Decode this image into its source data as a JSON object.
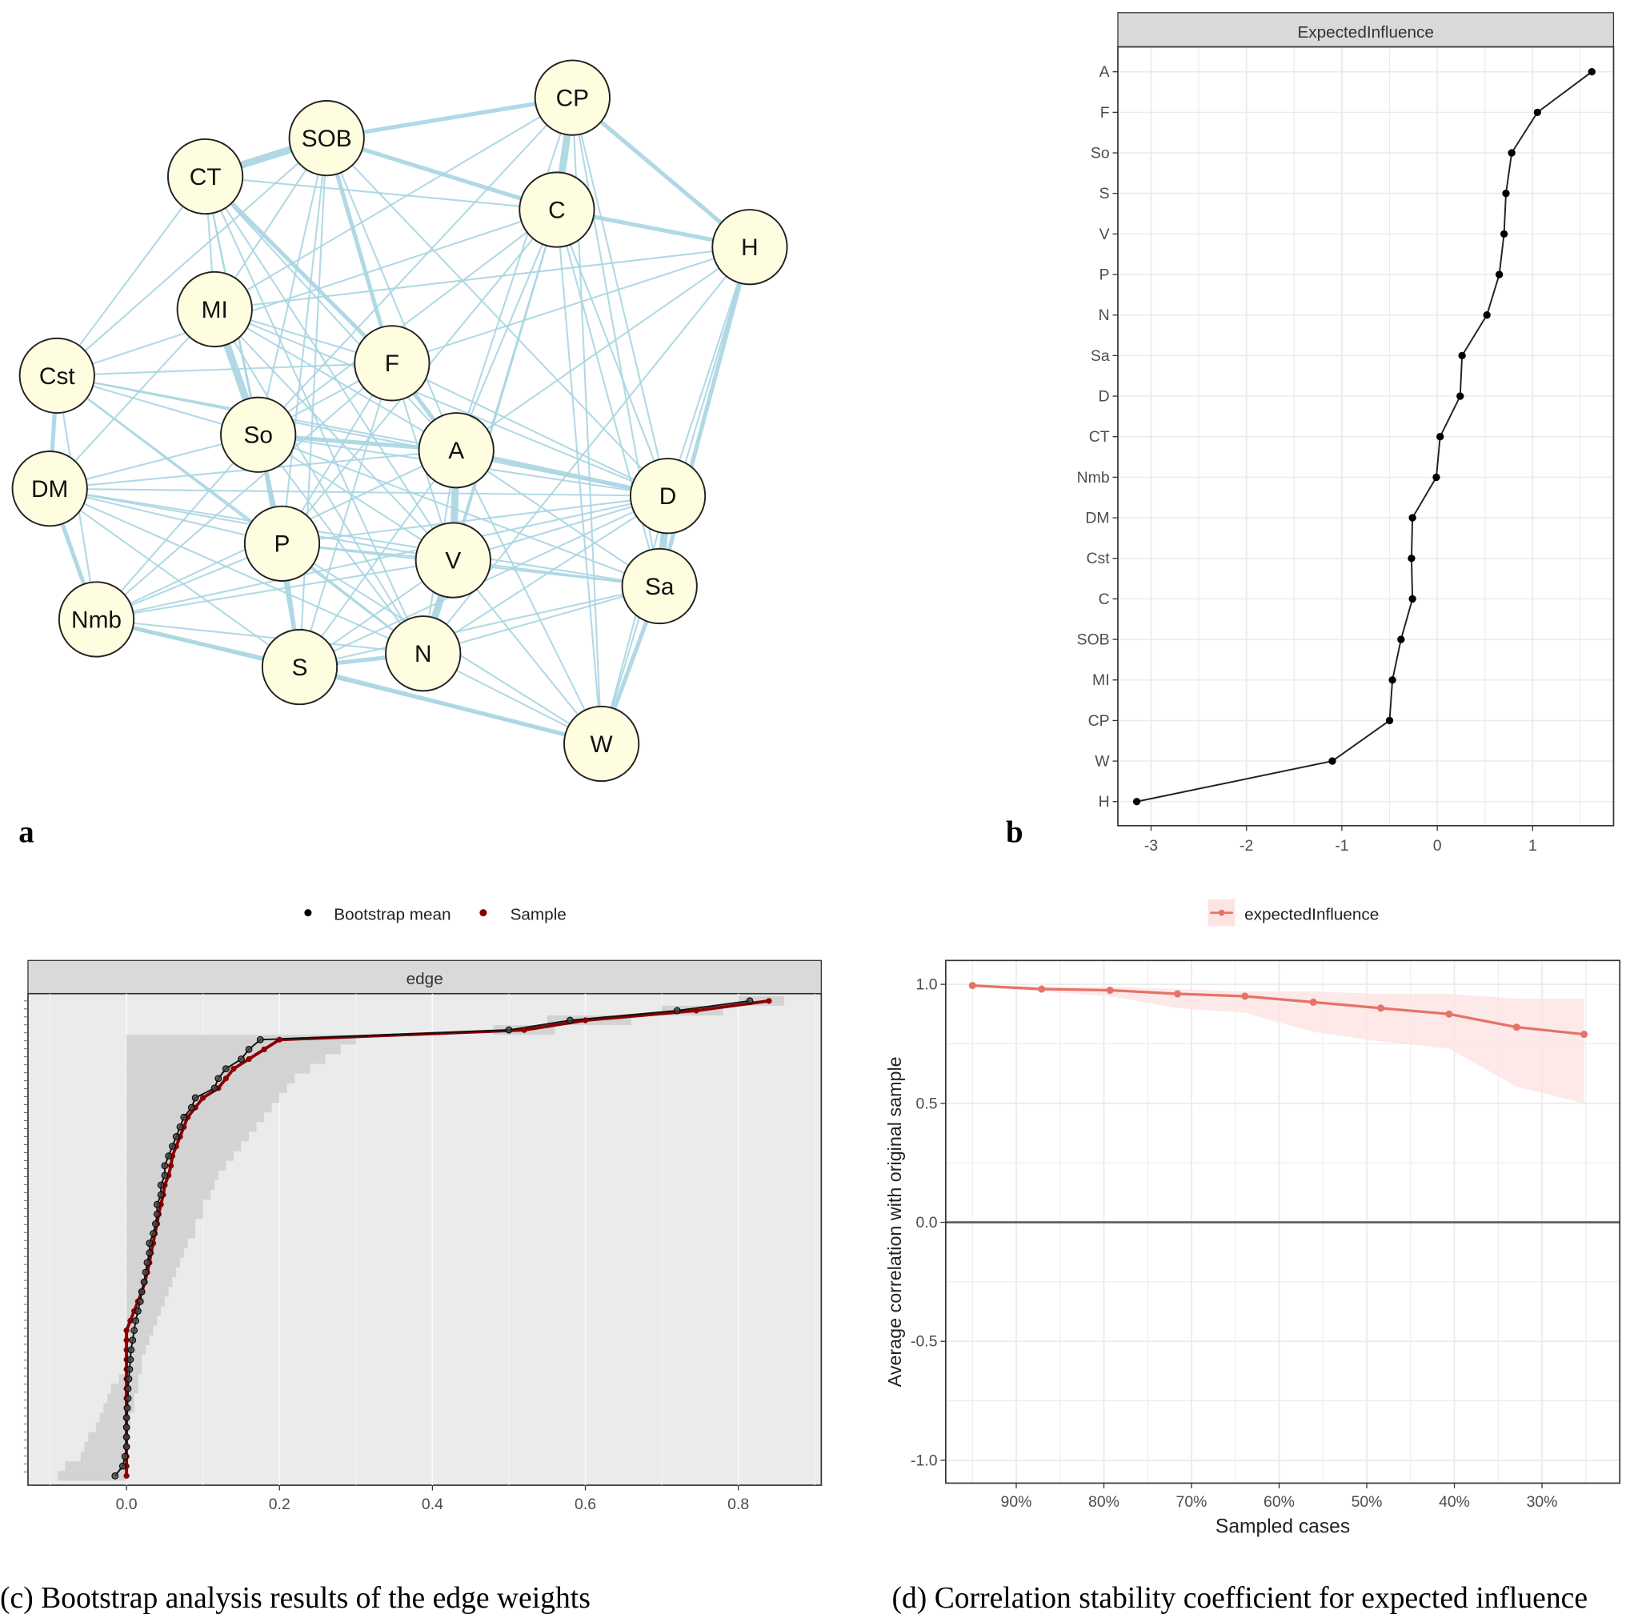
{
  "panel_labels": {
    "a": "a",
    "b": "b"
  },
  "captions": {
    "c": "(c) Bootstrap analysis results of the edge weights",
    "d": "(d) Correlation stability coefficient for expected influence"
  },
  "colors": {
    "edge": "#a8d5e2",
    "node_fill": "#fffde0",
    "sample": "#8b0000",
    "bootstrap": "#000000",
    "stability": "#e57368",
    "ci_band": "#fde4e2",
    "strip": "#d9d9d9",
    "panel_bg_c": "#ebebeb"
  },
  "chart_data": [
    {
      "type": "network",
      "panel": "a",
      "nodes": [
        {
          "id": "CP",
          "pos": [
            552,
            94
          ]
        },
        {
          "id": "SOB",
          "pos": [
            315,
            133
          ]
        },
        {
          "id": "CT",
          "pos": [
            198,
            170
          ]
        },
        {
          "id": "C",
          "pos": [
            537,
            202
          ]
        },
        {
          "id": "H",
          "pos": [
            723,
            238
          ]
        },
        {
          "id": "MI",
          "pos": [
            207,
            298
          ]
        },
        {
          "id": "Cst",
          "pos": [
            55,
            362
          ]
        },
        {
          "id": "F",
          "pos": [
            378,
            350
          ]
        },
        {
          "id": "So",
          "pos": [
            249,
            419
          ]
        },
        {
          "id": "A",
          "pos": [
            440,
            434
          ]
        },
        {
          "id": "DM",
          "pos": [
            48,
            471
          ]
        },
        {
          "id": "D",
          "pos": [
            644,
            478
          ]
        },
        {
          "id": "P",
          "pos": [
            272,
            524
          ]
        },
        {
          "id": "V",
          "pos": [
            437,
            540
          ]
        },
        {
          "id": "Sa",
          "pos": [
            636,
            565
          ]
        },
        {
          "id": "Nmb",
          "pos": [
            93,
            597
          ]
        },
        {
          "id": "S",
          "pos": [
            289,
            643
          ]
        },
        {
          "id": "N",
          "pos": [
            408,
            630
          ]
        },
        {
          "id": "W",
          "pos": [
            580,
            717
          ]
        }
      ],
      "edges": [
        [
          "CT",
          "SOB",
          3
        ],
        [
          "CP",
          "C",
          3
        ],
        [
          "A",
          "V",
          3
        ],
        [
          "V",
          "N",
          3
        ],
        [
          "MI",
          "So",
          3
        ],
        [
          "So",
          "P",
          2
        ],
        [
          "P",
          "S",
          2
        ],
        [
          "D",
          "Sa",
          3
        ],
        [
          "CP",
          "H",
          2
        ],
        [
          "C",
          "H",
          2
        ],
        [
          "SOB",
          "CP",
          2
        ],
        [
          "Cst",
          "DM",
          2
        ],
        [
          "DM",
          "Nmb",
          2
        ],
        [
          "S",
          "W",
          2
        ],
        [
          "F",
          "A",
          2
        ],
        [
          "CT",
          "F",
          2
        ],
        [
          "H",
          "Sa",
          2
        ],
        [
          "Sa",
          "W",
          2
        ],
        [
          "CP",
          "W",
          1
        ],
        [
          "SOB",
          "C",
          2
        ],
        [
          "CT",
          "C",
          1
        ],
        [
          "SOB",
          "F",
          2
        ],
        [
          "CT",
          "Cst",
          1
        ],
        [
          "CT",
          "MI",
          1
        ],
        [
          "MI",
          "A",
          1
        ],
        [
          "So",
          "A",
          2
        ],
        [
          "So",
          "D",
          1
        ],
        [
          "A",
          "D",
          2
        ],
        [
          "A",
          "Sa",
          1
        ],
        [
          "V",
          "D",
          1
        ],
        [
          "V",
          "Sa",
          1
        ],
        [
          "N",
          "Sa",
          1
        ],
        [
          "N",
          "D",
          1
        ],
        [
          "S",
          "N",
          2
        ],
        [
          "S",
          "V",
          1
        ],
        [
          "P",
          "V",
          1
        ],
        [
          "P",
          "N",
          1
        ],
        [
          "Nmb",
          "S",
          2
        ],
        [
          "Nmb",
          "N",
          1
        ],
        [
          "Nmb",
          "P",
          1
        ],
        [
          "DM",
          "So",
          1
        ],
        [
          "DM",
          "P",
          1
        ],
        [
          "DM",
          "A",
          1
        ],
        [
          "DM",
          "V",
          1
        ],
        [
          "DM",
          "D",
          1
        ],
        [
          "Cst",
          "So",
          1
        ],
        [
          "Cst",
          "A",
          1
        ],
        [
          "Cst",
          "F",
          1
        ],
        [
          "Cst",
          "P",
          1
        ],
        [
          "Cst",
          "N",
          1
        ],
        [
          "Cst",
          "D",
          1
        ],
        [
          "Cst",
          "C",
          1
        ],
        [
          "Cst",
          "SOB",
          1
        ],
        [
          "MI",
          "F",
          1
        ],
        [
          "MI",
          "V",
          1
        ],
        [
          "MI",
          "N",
          1
        ],
        [
          "MI",
          "D",
          1
        ],
        [
          "MI",
          "H",
          1
        ],
        [
          "F",
          "So",
          1
        ],
        [
          "F",
          "P",
          1
        ],
        [
          "F",
          "V",
          1
        ],
        [
          "F",
          "S",
          1
        ],
        [
          "F",
          "D",
          1
        ],
        [
          "F",
          "H",
          1
        ],
        [
          "F",
          "Nmb",
          1
        ],
        [
          "C",
          "A",
          1
        ],
        [
          "C",
          "V",
          1
        ],
        [
          "C",
          "N",
          1
        ],
        [
          "C",
          "So",
          1
        ],
        [
          "C",
          "P",
          1
        ],
        [
          "C",
          "D",
          1
        ],
        [
          "C",
          "W",
          1
        ],
        [
          "C",
          "Sa",
          1
        ],
        [
          "CP",
          "A",
          1
        ],
        [
          "CP",
          "So",
          1
        ],
        [
          "CP",
          "Sa",
          1
        ],
        [
          "CP",
          "D",
          1
        ],
        [
          "CP",
          "MI",
          1
        ],
        [
          "H",
          "D",
          1
        ],
        [
          "H",
          "W",
          1
        ],
        [
          "H",
          "A",
          1
        ],
        [
          "H",
          "N",
          1
        ],
        [
          "SOB",
          "So",
          1
        ],
        [
          "SOB",
          "P",
          1
        ],
        [
          "SOB",
          "S",
          1
        ],
        [
          "SOB",
          "MI",
          1
        ],
        [
          "SOB",
          "A",
          1
        ],
        [
          "SOB",
          "D",
          1
        ],
        [
          "CT",
          "So",
          1
        ],
        [
          "CT",
          "A",
          1
        ],
        [
          "CT",
          "P",
          1
        ],
        [
          "CT",
          "V",
          1
        ],
        [
          "CT",
          "N",
          1
        ],
        [
          "So",
          "V",
          1
        ],
        [
          "So",
          "N",
          1
        ],
        [
          "So",
          "S",
          1
        ],
        [
          "So",
          "Sa",
          1
        ],
        [
          "A",
          "N",
          1
        ],
        [
          "A",
          "S",
          1
        ],
        [
          "A",
          "Nmb",
          1
        ],
        [
          "A",
          "W",
          1
        ],
        [
          "V",
          "W",
          1
        ],
        [
          "P",
          "D",
          1
        ],
        [
          "P",
          "Sa",
          1
        ],
        [
          "S",
          "D",
          1
        ],
        [
          "S",
          "Sa",
          1
        ],
        [
          "N",
          "W",
          1
        ],
        [
          "D",
          "W",
          1
        ],
        [
          "DM",
          "S",
          1
        ],
        [
          "DM",
          "N",
          1
        ],
        [
          "DM",
          "Sa",
          1
        ],
        [
          "Nmb",
          "V",
          1
        ],
        [
          "Nmb",
          "D",
          1
        ],
        [
          "Nmb",
          "So",
          1
        ],
        [
          "Nmb",
          "W",
          1
        ],
        [
          "Cst",
          "Nmb",
          1
        ],
        [
          "DM",
          "MI",
          1
        ],
        [
          "P",
          "W",
          1
        ]
      ]
    },
    {
      "type": "line",
      "panel": "b",
      "title": "ExpectedInfluence",
      "categories": [
        "A",
        "F",
        "So",
        "S",
        "V",
        "P",
        "N",
        "Sa",
        "D",
        "CT",
        "Nmb",
        "DM",
        "Cst",
        "C",
        "SOB",
        "MI",
        "CP",
        "W",
        "H"
      ],
      "values": [
        1.62,
        1.05,
        0.78,
        0.72,
        0.7,
        0.65,
        0.52,
        0.26,
        0.24,
        0.03,
        -0.01,
        -0.26,
        -0.27,
        -0.26,
        -0.38,
        -0.47,
        -0.5,
        -1.1,
        -3.15
      ],
      "xticks": [
        -3,
        -2,
        -1,
        0,
        1
      ],
      "xlim": [
        -3.35,
        1.85
      ],
      "grid": true
    },
    {
      "type": "line",
      "panel": "c",
      "strip": "edge",
      "legend": [
        "Bootstrap mean",
        "Sample"
      ],
      "legend_placement": "top",
      "xticks": [
        "0.0",
        "0.2",
        "0.4",
        "0.6",
        "0.8"
      ],
      "xlim": [
        -0.13,
        0.92
      ],
      "series": [
        {
          "name": "Sample",
          "values": [
            0.84,
            0.745,
            0.6,
            0.52,
            0.2,
            0.18,
            0.16,
            0.14,
            0.13,
            0.12,
            0.1,
            0.09,
            0.08,
            0.075,
            0.07,
            0.065,
            0.06,
            0.058,
            0.055,
            0.05,
            0.048,
            0.045,
            0.042,
            0.04,
            0.037,
            0.035,
            0.032,
            0.03,
            0.027,
            0.024,
            0.02,
            0.015,
            0.01,
            0.005,
            0.0,
            0.0,
            0.0,
            0.0,
            0.0,
            0.0,
            0.0,
            0.0,
            0.0,
            0.0,
            0.0,
            0.0,
            0.0,
            0.0,
            0.0,
            0.0
          ]
        },
        {
          "name": "Bootstrap mean",
          "values": [
            0.815,
            0.72,
            0.58,
            0.5,
            0.175,
            0.16,
            0.15,
            0.13,
            0.12,
            0.115,
            0.09,
            0.085,
            0.075,
            0.07,
            0.065,
            0.06,
            0.055,
            0.05,
            0.05,
            0.045,
            0.045,
            0.04,
            0.04,
            0.038,
            0.035,
            0.03,
            0.03,
            0.027,
            0.025,
            0.023,
            0.02,
            0.018,
            0.015,
            0.012,
            0.01,
            0.008,
            0.006,
            0.005,
            0.004,
            0.003,
            0.002,
            0.002,
            0.001,
            0.0,
            0.0,
            0.0,
            0.0,
            -0.002,
            -0.005,
            -0.015
          ]
        },
        {
          "name": "ci_upper",
          "values": [
            0.86,
            0.78,
            0.66,
            0.56,
            0.3,
            0.28,
            0.26,
            0.24,
            0.22,
            0.21,
            0.2,
            0.19,
            0.18,
            0.17,
            0.16,
            0.15,
            0.14,
            0.13,
            0.12,
            0.115,
            0.11,
            0.1,
            0.1,
            0.09,
            0.09,
            0.08,
            0.075,
            0.07,
            0.065,
            0.06,
            0.055,
            0.05,
            0.045,
            0.04,
            0.035,
            0.03,
            0.025,
            0.02,
            0.02,
            0.015,
            0.015,
            0.01,
            0.01,
            0.005,
            0.005,
            0.0,
            0.0,
            0.0,
            0.0,
            0.0
          ]
        },
        {
          "name": "ci_lower",
          "values": [
            0.8,
            0.7,
            0.55,
            0.48,
            0.0,
            0.0,
            0.0,
            0.0,
            0.0,
            0.0,
            0.0,
            0.0,
            0.0,
            0.0,
            0.0,
            0.0,
            0.0,
            0.0,
            0.0,
            0.0,
            0.0,
            0.0,
            0.0,
            0.0,
            0.0,
            0.0,
            0.0,
            0.0,
            0.0,
            0.0,
            0.0,
            0.0,
            0.0,
            0.0,
            0.0,
            0.0,
            0.0,
            0.0,
            0.0,
            -0.01,
            -0.02,
            -0.025,
            -0.03,
            -0.035,
            -0.04,
            -0.05,
            -0.055,
            -0.06,
            -0.08,
            -0.09
          ]
        }
      ]
    },
    {
      "type": "line",
      "panel": "d",
      "legend": [
        "expectedInfluence"
      ],
      "legend_placement": "top",
      "xlabel": "Sampled cases",
      "ylabel": "Average correlation with original sample",
      "xticks": [
        "90%",
        "80%",
        "70%",
        "60%",
        "50%",
        "40%",
        "30%"
      ],
      "yticks": [
        "1.0",
        "0.5",
        "0.0",
        "-0.5",
        "-1.0"
      ],
      "ylim": [
        -1.1,
        1.1
      ],
      "x": [
        95,
        87.1,
        79.3,
        71.6,
        63.9,
        56.1,
        48.4,
        40.6,
        32.9,
        25.2
      ],
      "values": [
        0.995,
        0.98,
        0.975,
        0.96,
        0.95,
        0.925,
        0.9,
        0.875,
        0.82,
        0.79
      ],
      "ci_upper": [
        0.998,
        0.99,
        0.99,
        0.98,
        0.97,
        0.97,
        0.96,
        0.96,
        0.94,
        0.94
      ],
      "ci_lower": [
        0.99,
        0.97,
        0.95,
        0.9,
        0.88,
        0.8,
        0.76,
        0.73,
        0.57,
        0.5
      ],
      "grid": true
    }
  ]
}
